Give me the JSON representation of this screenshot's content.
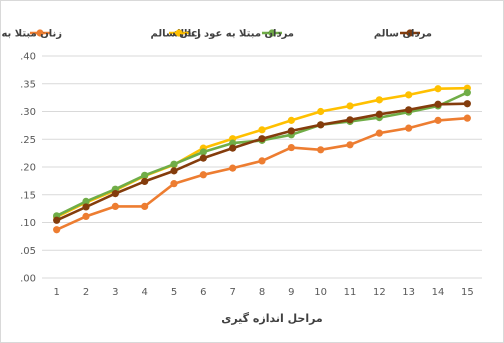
{
  "chart_data": {
    "type": "line",
    "title": "",
    "xlabel": "مراحل اندازه گیری",
    "ylabel": "",
    "x": [
      1,
      2,
      3,
      4,
      5,
      6,
      7,
      8,
      9,
      10,
      11,
      12,
      13,
      14,
      15
    ],
    "ylim": [
      0,
      0.4
    ],
    "y_ticks": [
      ".00",
      ".05",
      ".10",
      ".15",
      ".20",
      ".25",
      ".30",
      ".35",
      ".40"
    ],
    "grid": true,
    "legend_position": "top",
    "series": [
      {
        "name": "زنان مبتلا به عود dlbcl",
        "color": "#ed7d31",
        "values": [
          0.087,
          0.111,
          0.129,
          0.129,
          0.17,
          0.186,
          0.198,
          0.211,
          0.235,
          0.231,
          0.24,
          0.261,
          0.27,
          0.284,
          0.288
        ]
      },
      {
        "name": "زنان سالم",
        "color": "#ffc000",
        "values": [
          0.11,
          0.136,
          0.158,
          0.184,
          0.204,
          0.234,
          0.251,
          0.267,
          0.284,
          0.3,
          0.31,
          0.321,
          0.33,
          0.341,
          0.342
        ]
      },
      {
        "name": "مردان مبتلا به عود dlbcl",
        "color": "#70ad47",
        "values": [
          0.112,
          0.138,
          0.16,
          0.185,
          0.205,
          0.227,
          0.243,
          0.248,
          0.258,
          0.276,
          0.282,
          0.289,
          0.299,
          0.31,
          0.334
        ]
      },
      {
        "name": "مردان سالم",
        "color": "#843c0c",
        "values": [
          0.104,
          0.128,
          0.152,
          0.174,
          0.193,
          0.216,
          0.234,
          0.251,
          0.265,
          0.276,
          0.285,
          0.295,
          0.303,
          0.313,
          0.314
        ]
      }
    ]
  }
}
